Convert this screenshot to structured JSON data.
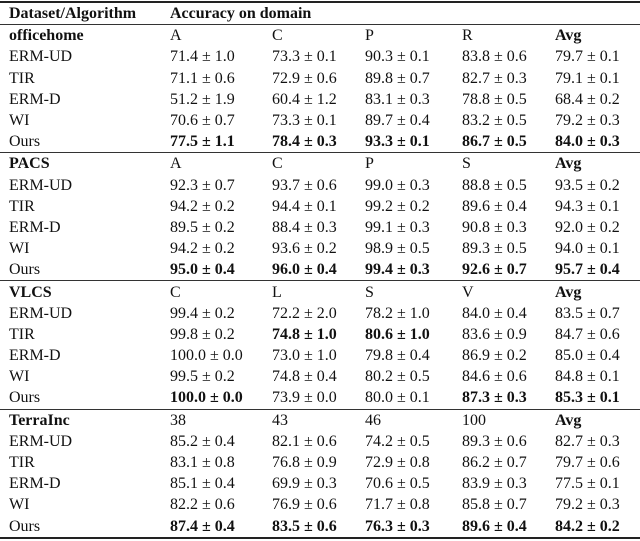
{
  "table": {
    "header": [
      "Dataset/Algorithm",
      "Accuracy on domain"
    ],
    "sections": [
      {
        "name": "officehome",
        "domains": [
          "A",
          "C",
          "P",
          "R",
          "Avg"
        ],
        "rows": [
          {
            "name": "ERM-UD",
            "cells": [
              "71.4 ± 1.0",
              "73.3 ± 0.1",
              "90.3 ± 0.1",
              "83.8 ± 0.6",
              "79.7 ± 0.1"
            ]
          },
          {
            "name": "TIR",
            "cells": [
              "71.1 ± 0.6",
              "72.9 ± 0.6",
              "89.8 ± 0.7",
              "82.7 ± 0.3",
              "79.1 ± 0.1"
            ]
          },
          {
            "name": "ERM-D",
            "cells": [
              "51.2 ± 1.9",
              "60.4 ± 1.2",
              "83.1 ± 0.3",
              "78.8 ± 0.5",
              "68.4 ± 0.2"
            ]
          },
          {
            "name": "WI",
            "cells": [
              "70.6 ± 0.7",
              "73.3 ± 0.1",
              "89.7 ± 0.4",
              "83.2 ± 0.5",
              "79.2 ± 0.3"
            ]
          },
          {
            "name": "Ours",
            "cells": [
              {
                "text": "77.5 ± 1.1",
                "bold": true
              },
              {
                "text": "78.4 ± 0.3",
                "bold": true
              },
              {
                "text": "93.3 ± 0.1",
                "bold": true
              },
              {
                "text": "86.7 ± 0.5",
                "bold": true
              },
              {
                "text": "84.0 ± 0.3",
                "bold": true
              }
            ]
          }
        ]
      },
      {
        "name": "PACS",
        "domains": [
          "A",
          "C",
          "P",
          "S",
          "Avg"
        ],
        "rows": [
          {
            "name": "ERM-UD",
            "cells": [
              "92.3 ± 0.7",
              "93.7 ± 0.6",
              "99.0 ± 0.3",
              "88.8 ± 0.5",
              "93.5 ± 0.2"
            ]
          },
          {
            "name": "TIR",
            "cells": [
              "94.2 ± 0.2",
              "94.4 ± 0.1",
              "99.2 ± 0.2",
              "89.6 ± 0.4",
              "94.3 ± 0.1"
            ]
          },
          {
            "name": "ERM-D",
            "cells": [
              "89.5 ± 0.2",
              "88.4 ± 0.3",
              "99.1 ± 0.3",
              "90.8 ± 0.3",
              "92.0 ± 0.2"
            ]
          },
          {
            "name": "WI",
            "cells": [
              "94.2 ± 0.2",
              "93.6 ± 0.2",
              "98.9 ± 0.5",
              "89.3 ± 0.5",
              "94.0 ± 0.1"
            ]
          },
          {
            "name": "Ours",
            "cells": [
              {
                "text": "95.0 ± 0.4",
                "bold": true
              },
              {
                "text": "96.0 ± 0.4",
                "bold": true
              },
              {
                "text": "99.4 ± 0.3",
                "bold": true
              },
              {
                "text": "92.6 ± 0.7",
                "bold": true
              },
              {
                "text": "95.7 ± 0.4",
                "bold": true
              }
            ]
          }
        ]
      },
      {
        "name": "VLCS",
        "domains": [
          "C",
          "L",
          "S",
          "V",
          "Avg"
        ],
        "rows": [
          {
            "name": "ERM-UD",
            "cells": [
              "99.4 ± 0.2",
              "72.2 ± 2.0",
              "78.2 ± 1.0",
              "84.0 ± 0.4",
              "83.5 ± 0.7"
            ]
          },
          {
            "name": "TIR",
            "cells": [
              "99.8 ± 0.2",
              {
                "text": "74.8 ± 1.0",
                "bold": true
              },
              {
                "text": "80.6 ± 1.0",
                "bold": true
              },
              "83.6 ± 0.9",
              "84.7 ± 0.6"
            ]
          },
          {
            "name": "ERM-D",
            "cells": [
              "100.0 ± 0.0",
              "73.0 ± 1.0",
              "79.8 ± 0.4",
              "86.9 ± 0.2",
              "85.0 ± 0.4"
            ]
          },
          {
            "name": "WI",
            "cells": [
              "99.5 ± 0.2",
              "74.8 ± 0.4",
              "80.2 ± 0.5",
              "84.6 ± 0.6",
              "84.8 ± 0.1"
            ]
          },
          {
            "name": "Ours",
            "cells": [
              {
                "text": "100.0 ± 0.0",
                "bold": true
              },
              "73.9 ± 0.0",
              "80.0 ± 0.1",
              {
                "text": "87.3 ± 0.3",
                "bold": true
              },
              {
                "text": "85.3 ± 0.1",
                "bold": true
              }
            ]
          }
        ]
      },
      {
        "name": "TerraInc",
        "domains": [
          "38",
          "43",
          "46",
          "100",
          "Avg"
        ],
        "rows": [
          {
            "name": "ERM-UD",
            "cells": [
              "85.2 ± 0.4",
              "82.1 ± 0.6",
              "74.2 ± 0.5",
              "89.3 ± 0.6",
              "82.7 ± 0.3"
            ]
          },
          {
            "name": "TIR",
            "cells": [
              "83.1 ± 0.8",
              "76.8 ± 0.9",
              "72.9 ± 0.8",
              "86.2 ± 0.7",
              "79.7 ± 0.6"
            ]
          },
          {
            "name": "ERM-D",
            "cells": [
              "85.1 ± 0.4",
              "69.9 ± 0.3",
              "70.6 ± 0.5",
              "83.9 ± 0.3",
              "77.5 ± 0.1"
            ]
          },
          {
            "name": "WI",
            "cells": [
              "82.2 ± 0.6",
              "76.9 ± 0.6",
              "71.7 ± 0.8",
              "85.8 ± 0.7",
              "79.2 ± 0.3"
            ]
          },
          {
            "name": "Ours",
            "cells": [
              {
                "text": "87.4 ± 0.4",
                "bold": true
              },
              {
                "text": "83.5 ± 0.6",
                "bold": true
              },
              {
                "text": "76.3 ± 0.3",
                "bold": true
              },
              {
                "text": "89.6 ± 0.4",
                "bold": true
              },
              {
                "text": "84.2 ± 0.2",
                "bold": true
              }
            ]
          }
        ]
      }
    ]
  }
}
